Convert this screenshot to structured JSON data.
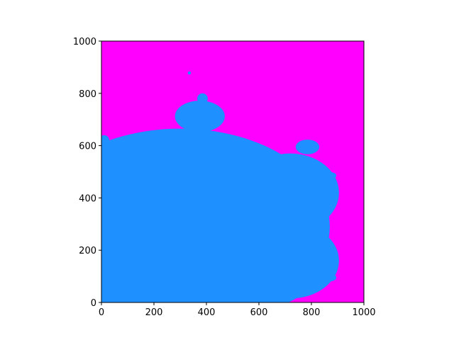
{
  "chart_data": {
    "type": "heatmap",
    "title": "",
    "xlabel": "",
    "ylabel": "",
    "xlim": [
      0,
      1000
    ],
    "ylim": [
      0,
      1000
    ],
    "x_ticks": [
      {
        "value": 0,
        "label": "0"
      },
      {
        "value": 200,
        "label": "200"
      },
      {
        "value": 400,
        "label": "400"
      },
      {
        "value": 600,
        "label": "600"
      },
      {
        "value": 800,
        "label": "800"
      },
      {
        "value": 1000,
        "label": "1000"
      }
    ],
    "y_ticks": [
      {
        "value": 0,
        "label": "0"
      },
      {
        "value": 200,
        "label": "200"
      },
      {
        "value": 400,
        "label": "400"
      },
      {
        "value": 600,
        "label": "600"
      },
      {
        "value": 800,
        "label": "800"
      },
      {
        "value": 1000,
        "label": "1000"
      }
    ],
    "grid": false,
    "legend": "none",
    "colors": {
      "inside_set": "#1e90ff",
      "outside_set": "#ff00ff"
    },
    "regions": [
      {
        "name": "main-cardioid",
        "value": "inside_set"
      },
      {
        "name": "main-bulb",
        "value": "inside_set"
      },
      {
        "name": "upper-bulb",
        "value": "inside_set"
      },
      {
        "name": "right-bulb",
        "value": "inside_set"
      },
      {
        "name": "small-bulb-right",
        "value": "inside_set"
      },
      {
        "name": "background",
        "value": "outside_set"
      }
    ]
  }
}
